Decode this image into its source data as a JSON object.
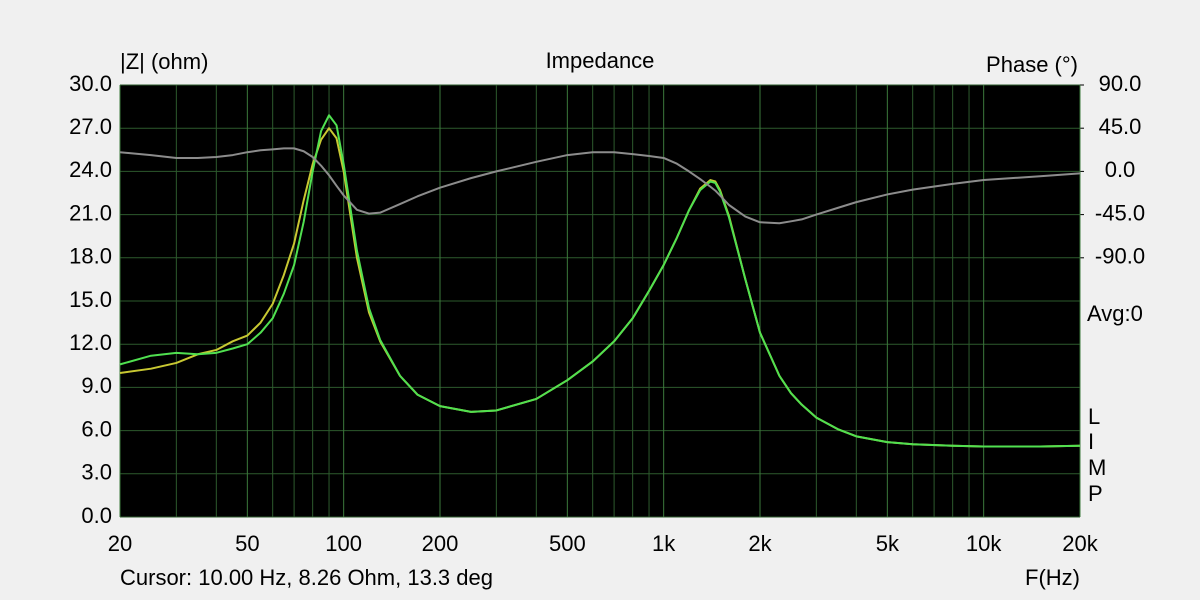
{
  "chart_data": {
    "type": "line",
    "title": "Impedance",
    "y_label": "|Z| (ohm)",
    "y2_label": "Phase (°)",
    "x_label": "F(Hz)",
    "annotations": [
      "Avg:0",
      "L",
      "I",
      "M",
      "P"
    ],
    "cursor": "Cursor: 10.00 Hz, 8.26 Ohm, 13.3 deg",
    "log_x": true,
    "grid": true,
    "xlim": [
      20,
      20000
    ],
    "xticks": [
      20,
      50,
      100,
      200,
      500,
      {
        "value": 1000,
        "label": "1k"
      },
      {
        "value": 2000,
        "label": "2k"
      },
      {
        "value": 5000,
        "label": "5k"
      },
      {
        "value": 10000,
        "label": "10k"
      },
      {
        "value": 20000,
        "label": "20k"
      }
    ],
    "x_minor_grid": [
      30,
      40,
      60,
      70,
      80,
      90,
      300,
      400,
      600,
      700,
      800,
      900,
      3000,
      4000,
      6000,
      7000,
      8000,
      9000
    ],
    "ylim": [
      0,
      30
    ],
    "yticks": [
      {
        "value": 0,
        "label": "0.0"
      },
      {
        "value": 3,
        "label": "3.0"
      },
      {
        "value": 6,
        "label": "6.0"
      },
      {
        "value": 9,
        "label": "9.0"
      },
      {
        "value": 12,
        "label": "12.0"
      },
      {
        "value": 15,
        "label": "15.0"
      },
      {
        "value": 18,
        "label": "18.0"
      },
      {
        "value": 21,
        "label": "21.0"
      },
      {
        "value": 24,
        "label": "24.0"
      },
      {
        "value": 27,
        "label": "27.0"
      },
      {
        "value": 30,
        "label": "30.0"
      }
    ],
    "y2lim": [
      -360,
      90
    ],
    "y2ticks": [
      {
        "value": 90,
        "label": "90.0"
      },
      {
        "value": 45,
        "label": "45.0"
      },
      {
        "value": 0,
        "label": "0.0"
      },
      {
        "value": -45,
        "label": "-45.0"
      },
      {
        "value": -90,
        "label": "-90.0"
      }
    ],
    "x": [
      20,
      25,
      30,
      35,
      40,
      45,
      50,
      55,
      60,
      65,
      70,
      75,
      80,
      85,
      90,
      95,
      100,
      110,
      120,
      130,
      150,
      170,
      200,
      250,
      300,
      400,
      500,
      600,
      700,
      800,
      900,
      1000,
      1100,
      1200,
      1300,
      1400,
      1450,
      1500,
      1600,
      1800,
      2000,
      2300,
      2500,
      2700,
      3000,
      3500,
      4000,
      5000,
      6000,
      8000,
      10000,
      15000,
      20000
    ],
    "series": [
      {
        "color": "#c8c832",
        "values": [
          10.0,
          10.3,
          10.7,
          11.3,
          11.6,
          12.2,
          12.6,
          13.5,
          14.8,
          16.8,
          19.0,
          22.0,
          24.5,
          26.2,
          27.0,
          26.3,
          24.0,
          18.0,
          14.2,
          12.2,
          9.8,
          8.5,
          7.7,
          7.3,
          7.4,
          8.2,
          9.5,
          10.8,
          12.2,
          13.8,
          15.7,
          17.5,
          19.4,
          21.3,
          22.8,
          23.4,
          23.3,
          22.7,
          20.9,
          16.5,
          12.8,
          9.8,
          8.6,
          7.8,
          6.9,
          6.1,
          5.6,
          5.2,
          5.05,
          4.95,
          4.9,
          4.9,
          4.95
        ]
      },
      {
        "color": "#50e050",
        "values": [
          10.6,
          11.2,
          11.4,
          11.3,
          11.4,
          11.7,
          12.0,
          12.8,
          13.8,
          15.5,
          17.5,
          20.5,
          24.0,
          26.8,
          27.9,
          27.2,
          24.5,
          18.5,
          14.5,
          12.3,
          9.8,
          8.5,
          7.7,
          7.3,
          7.4,
          8.2,
          9.5,
          10.8,
          12.2,
          13.8,
          15.7,
          17.5,
          19.4,
          21.3,
          22.7,
          23.3,
          23.2,
          22.6,
          20.8,
          16.5,
          12.8,
          9.8,
          8.6,
          7.8,
          6.9,
          6.1,
          5.6,
          5.2,
          5.05,
          4.95,
          4.9,
          4.9,
          4.95
        ]
      },
      {
        "color": "#8c8c8c",
        "axis": "y2",
        "values": [
          20,
          17,
          14,
          14,
          15,
          17,
          20,
          22,
          23,
          24,
          24,
          21,
          15,
          6,
          -4,
          -15,
          -25,
          -40,
          -44,
          -43,
          -34,
          -26,
          -17,
          -7,
          0,
          10,
          17,
          20,
          20,
          18,
          16,
          14,
          8,
          0,
          -8,
          -16,
          -20,
          -25,
          -35,
          -47,
          -53,
          -54,
          -52,
          -50,
          -45,
          -38,
          -32,
          -24,
          -19,
          -13,
          -9,
          -5,
          -2
        ]
      }
    ]
  }
}
